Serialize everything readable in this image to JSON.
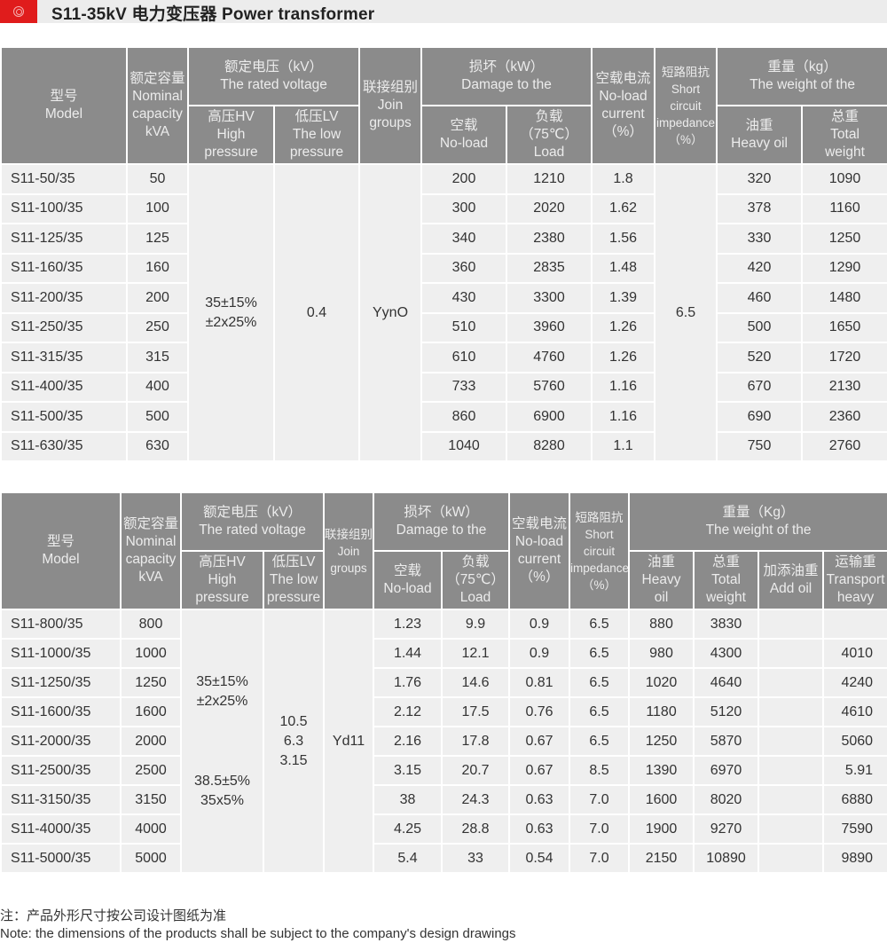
{
  "header": {
    "title": "S11-35kV 电力变压器 Power transformer",
    "logo_icon": "red-circle-logo",
    "accent": "#e01c1c"
  },
  "table1": {
    "headers": {
      "model": [
        "型号",
        "Model"
      ],
      "capacity": [
        "额定容量",
        "Nominal",
        "capacity",
        "kVA"
      ],
      "voltage": [
        "额定电压（kV）",
        "The rated voltage"
      ],
      "hv": [
        "高压HV",
        "High",
        "pressure"
      ],
      "lv": [
        "低压LV",
        "The low",
        "pressure"
      ],
      "join": [
        "联接组别",
        "Join",
        "groups"
      ],
      "damage": [
        "损坏（kW）",
        "Damage to the"
      ],
      "noload": [
        "空载",
        "No-load"
      ],
      "load": [
        "负载",
        "（75℃）",
        "Load"
      ],
      "current": [
        "空载电流",
        "No-load",
        "current",
        "（%）"
      ],
      "impedance": [
        "短路阻抗",
        "Short",
        "circuit",
        "impedance",
        "（%）"
      ],
      "weight": [
        "重量（kg）",
        "The weight of the"
      ],
      "oil": [
        "油重",
        "Heavy oil"
      ],
      "total": [
        "总重",
        "Total",
        "weight"
      ]
    },
    "merged": {
      "hv": [
        "35±15%",
        "±2x25%"
      ],
      "lv": "0.4",
      "join": "YynO",
      "impedance": "6.5"
    },
    "rows": [
      [
        "S11-50/35",
        "50",
        "200",
        "1210",
        "1.8",
        "320",
        "1090"
      ],
      [
        "S11-100/35",
        "100",
        "300",
        "2020",
        "1.62",
        "378",
        "1160"
      ],
      [
        "S11-125/35",
        "125",
        "340",
        "2380",
        "1.56",
        "330",
        "1250"
      ],
      [
        "S11-160/35",
        "160",
        "360",
        "2835",
        "1.48",
        "420",
        "1290"
      ],
      [
        "S11-200/35",
        "200",
        "430",
        "3300",
        "1.39",
        "460",
        "1480"
      ],
      [
        "S11-250/35",
        "250",
        "510",
        "3960",
        "1.26",
        "500",
        "1650"
      ],
      [
        "S11-315/35",
        "315",
        "610",
        "4760",
        "1.26",
        "520",
        "1720"
      ],
      [
        "S11-400/35",
        "400",
        "733",
        "5760",
        "1.16",
        "670",
        "2130"
      ],
      [
        "S11-500/35",
        "500",
        "860",
        "6900",
        "1.16",
        "690",
        "2360"
      ],
      [
        "S11-630/35",
        "630",
        "1040",
        "8280",
        "1.1",
        "750",
        "2760"
      ]
    ]
  },
  "table2": {
    "headers": {
      "model": [
        "型号",
        "Model"
      ],
      "capacity": [
        "额定容量",
        "Nominal",
        "capacity",
        "kVA"
      ],
      "voltage": [
        "额定电压（kV）",
        "The rated voltage"
      ],
      "hv": [
        "高压HV",
        "High",
        "pressure"
      ],
      "lv": [
        "低压LV",
        "The low",
        "pressure"
      ],
      "join": [
        "联接组别",
        "Join",
        "groups"
      ],
      "damage": [
        "损坏（kW）",
        "Damage to the"
      ],
      "noload": [
        "空载",
        "No-load"
      ],
      "load": [
        "负载",
        "（75℃）",
        "Load"
      ],
      "current": [
        "空载电流",
        "No-load",
        "current",
        "（%）"
      ],
      "impedance": [
        "短路阻抗",
        "Short",
        "circuit",
        "impedance",
        "（%）"
      ],
      "weight": [
        "重量（Kg）",
        "The weight of the"
      ],
      "oil": [
        "油重",
        "Heavy",
        "oil"
      ],
      "total": [
        "总重",
        "Total",
        "weight"
      ],
      "addoil": [
        "加添油重",
        "Add oil"
      ],
      "transport": [
        "运输重",
        "Transport",
        "heavy"
      ]
    },
    "merged": {
      "hv_a": [
        "35±15%",
        "±2x25%"
      ],
      "hv_b": [
        "38.5±5%",
        "35x5%"
      ],
      "lv": [
        "10.5",
        "6.3",
        "3.15"
      ],
      "join": "Yd11"
    },
    "rows": [
      [
        "S11-800/35",
        "800",
        "1.23",
        "9.9",
        "0.9",
        "6.5",
        "880",
        "3830",
        "",
        ""
      ],
      [
        "S11-1000/35",
        "1000",
        "1.44",
        "12.1",
        "0.9",
        "6.5",
        "980",
        "4300",
        "",
        "4010"
      ],
      [
        "S11-1250/35",
        "1250",
        "1.76",
        "14.6",
        "0.81",
        "6.5",
        "1020",
        "4640",
        "",
        "4240"
      ],
      [
        "S11-1600/35",
        "1600",
        "2.12",
        "17.5",
        "0.76",
        "6.5",
        "1180",
        "5120",
        "",
        "4610"
      ],
      [
        "S11-2000/35",
        "2000",
        "2.16",
        "17.8",
        "0.67",
        "6.5",
        "1250",
        "5870",
        "",
        "5060"
      ],
      [
        "S11-2500/35",
        "2500",
        "3.15",
        "20.7",
        "0.67",
        "8.5",
        "1390",
        "6970",
        "",
        "5.91"
      ],
      [
        "S11-3150/35",
        "3150",
        "38",
        "24.3",
        "0.63",
        "7.0",
        "1600",
        "8020",
        "",
        "6880"
      ],
      [
        "S11-4000/35",
        "4000",
        "4.25",
        "28.8",
        "0.63",
        "7.0",
        "1900",
        "9270",
        "",
        "7590"
      ],
      [
        "S11-5000/35",
        "5000",
        "5.4",
        "33",
        "0.54",
        "7.0",
        "2150",
        "10890",
        "",
        "9890"
      ]
    ]
  },
  "notes": [
    "注：产品外形尺寸按公司设计图纸为准",
    "Note: the dimensions of the products shall be subject to the company's design drawings"
  ]
}
